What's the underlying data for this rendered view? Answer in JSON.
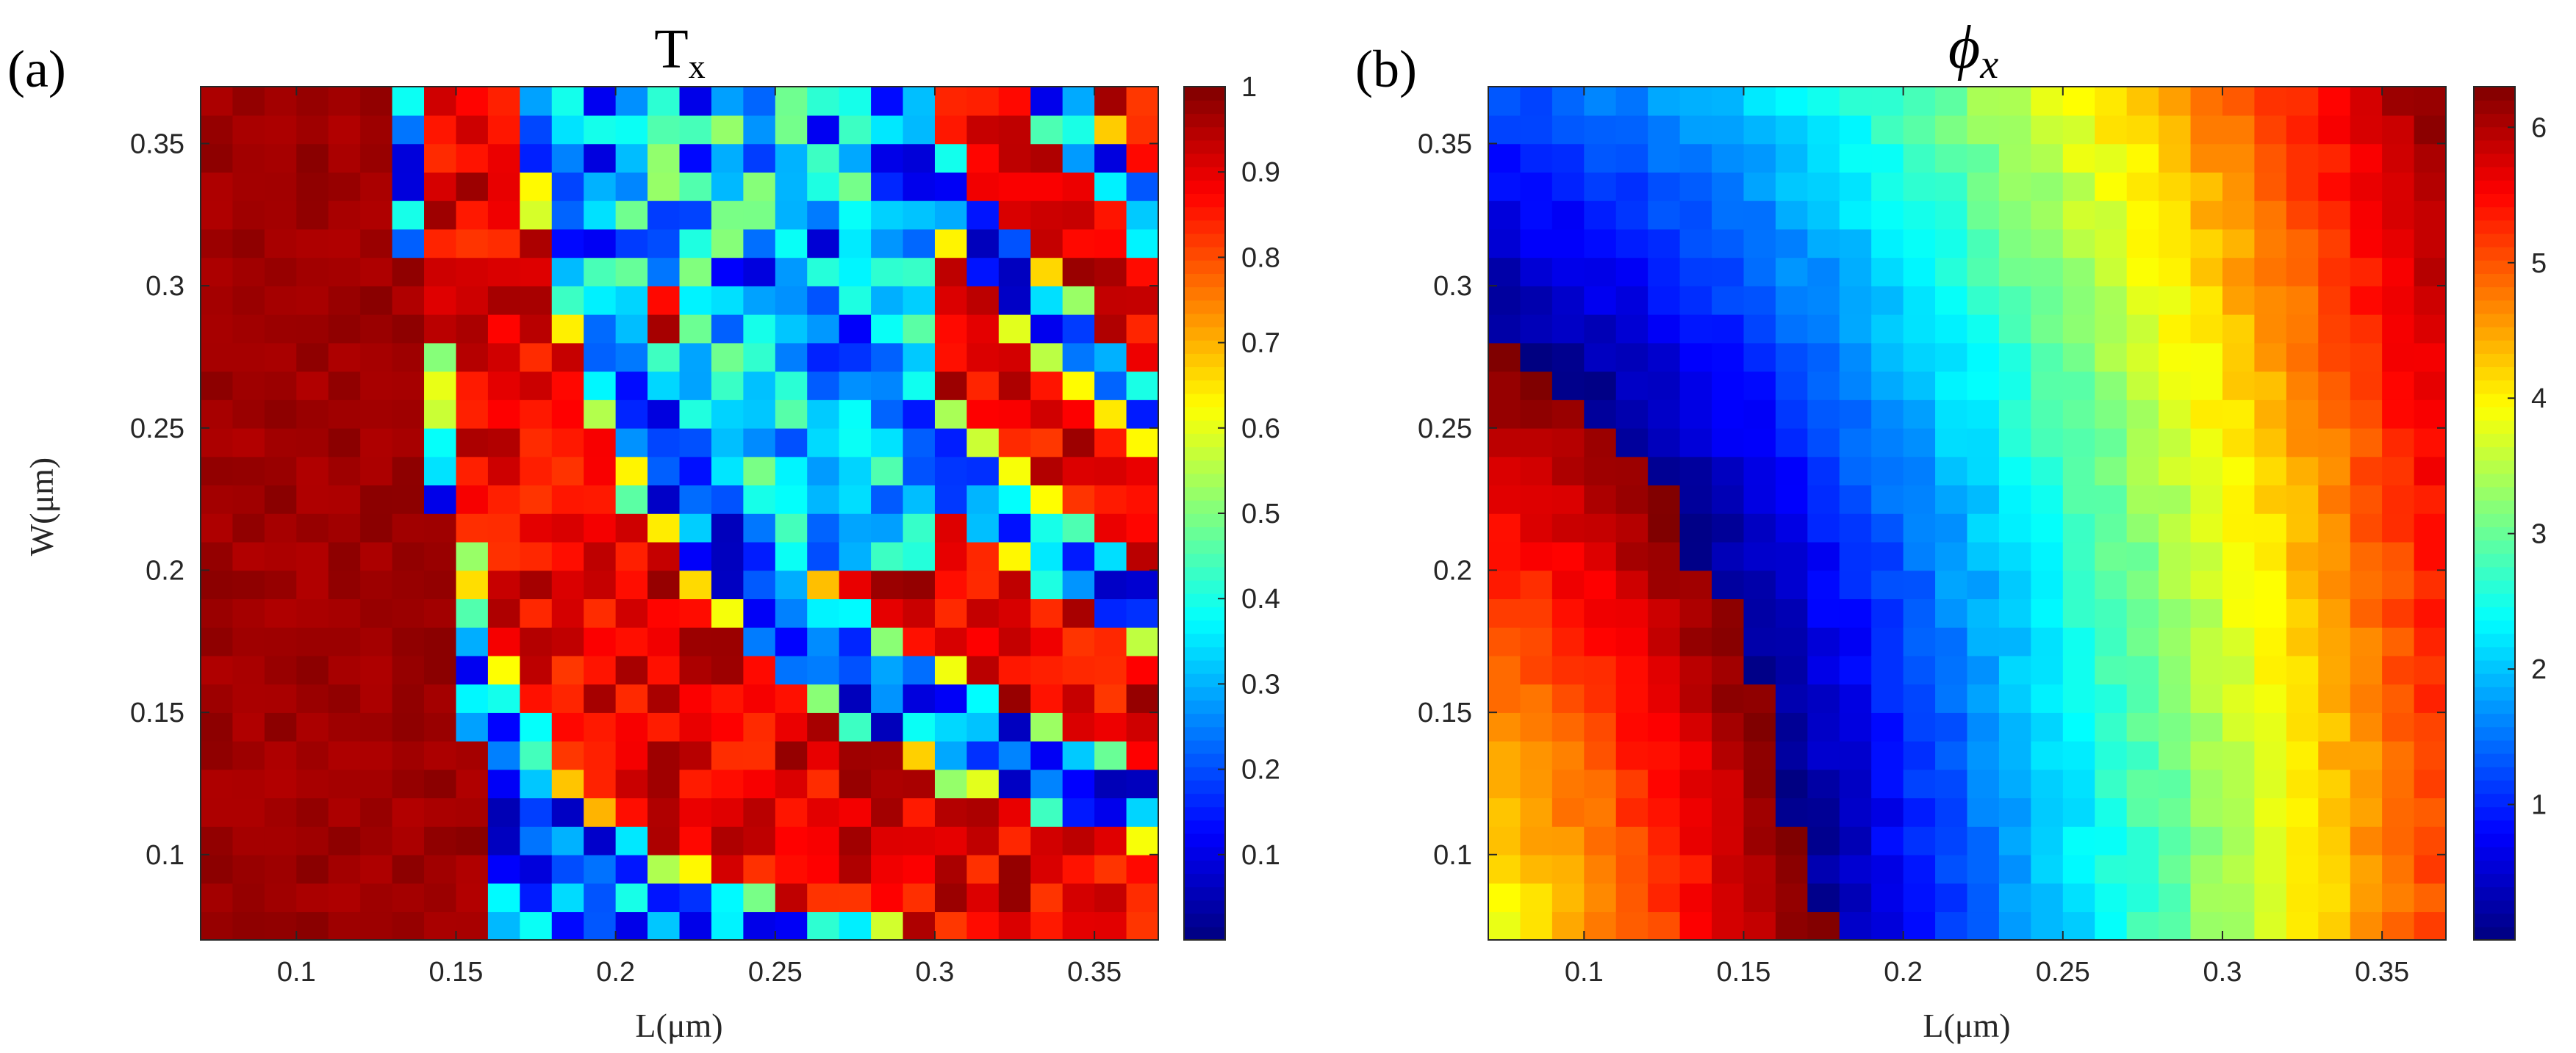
{
  "figure_labels": [
    "(a)",
    "(b)"
  ],
  "chart_data": [
    {
      "type": "heatmap",
      "panel": "(a)",
      "title": "Tx",
      "title_main": "T",
      "title_sub": "x",
      "xlabel": "L(μm)",
      "ylabel": "W(μm)",
      "xlim": [
        0.07,
        0.37
      ],
      "ylim": [
        0.07,
        0.37
      ],
      "xticks": [
        "0.1",
        "0.15",
        "0.2",
        "0.25",
        "0.3",
        "0.35"
      ],
      "yticks": [
        "0.1",
        "0.15",
        "0.2",
        "0.25",
        "0.3",
        "0.35"
      ],
      "grid": [
        30,
        30
      ],
      "colormap": "jet",
      "colorbar": {
        "min": 0,
        "max": 1,
        "ticks": [
          "0.1",
          "0.2",
          "0.3",
          "0.4",
          "0.5",
          "0.6",
          "0.7",
          "0.8",
          "0.9",
          "1"
        ]
      },
      "description": "Transmission near 1 (dark red) for small L; resonant bands of low transmission (blue) curving from top-middle to lower-right."
    },
    {
      "type": "heatmap",
      "panel": "(b)",
      "title": "φx",
      "title_main": "ϕ",
      "title_sub": "x",
      "xlabel": "L(μm)",
      "ylabel": "",
      "xlim": [
        0.07,
        0.37
      ],
      "ylim": [
        0.07,
        0.37
      ],
      "xticks": [
        "0.1",
        "0.15",
        "0.2",
        "0.25",
        "0.3",
        "0.35"
      ],
      "yticks": [
        "0.1",
        "0.15",
        "0.2",
        "0.25",
        "0.3",
        "0.35"
      ],
      "grid": [
        30,
        30
      ],
      "colormap": "jet",
      "colorbar": {
        "min": 0,
        "max": 6.3,
        "ticks": [
          "1",
          "2",
          "3",
          "4",
          "5",
          "6"
        ]
      },
      "description": "Phase wrapping 0–2π: concentric curved bands (green→yellow→red→blue) sweeping from lower-left."
    }
  ]
}
